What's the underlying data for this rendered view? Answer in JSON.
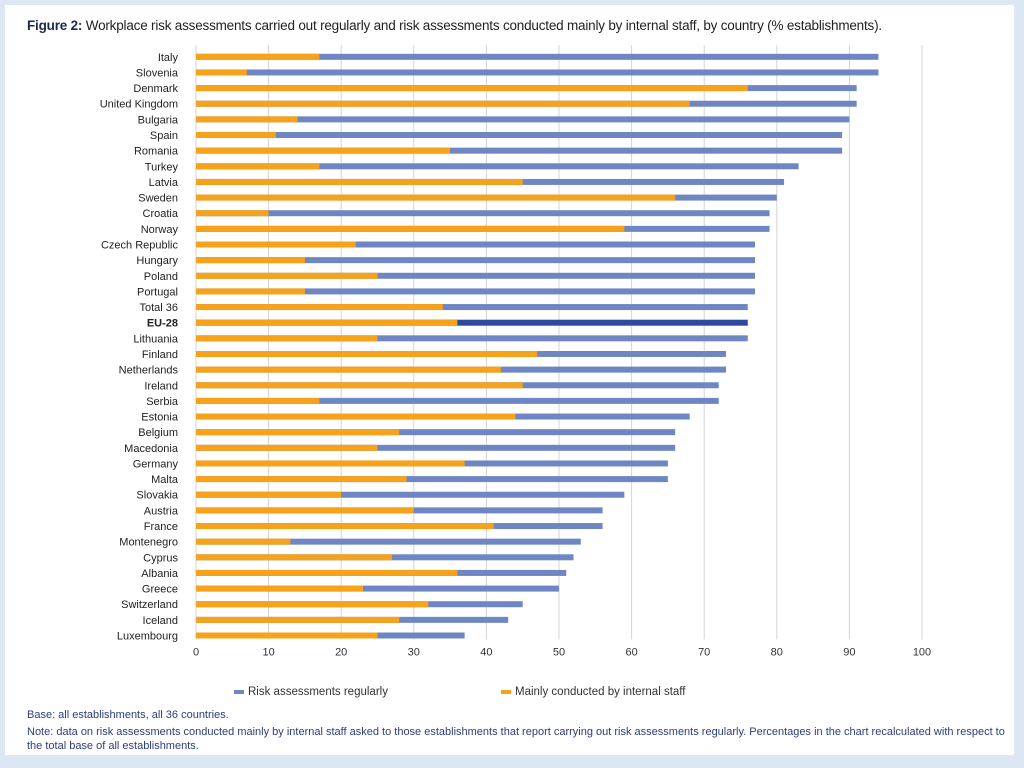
{
  "figure": {
    "label": "Figure 2:",
    "title": "Workplace risk assessments carried out regularly and risk assessments conducted mainly by internal staff, by country (% establishments)."
  },
  "footer": {
    "base": "Base: all establishments, all 36 countries.",
    "note": "Note: data on risk assessments conducted mainly by internal staff asked to those establishments that report carrying out risk assessments regularly. Percentages in the chart recalculated with respect to the total base of all establishments."
  },
  "colors": {
    "regular": "#6f86c4",
    "internal": "#f7a21b",
    "highlight": "#2d4aa0",
    "grid": "#d4d4d4"
  },
  "chart_data": {
    "type": "bar",
    "orientation": "horizontal",
    "title": "",
    "xlabel": "",
    "ylabel": "",
    "xlim": [
      0,
      100
    ],
    "x_ticks": [
      0,
      10,
      20,
      30,
      40,
      50,
      60,
      70,
      80,
      90,
      100
    ],
    "grid": true,
    "legend_position": "bottom",
    "highlight_category": "EU-28",
    "categories": [
      "Italy",
      "Slovenia",
      "Denmark",
      "United Kingdom",
      "Bulgaria",
      "Spain",
      "Romania",
      "Turkey",
      "Latvia",
      "Sweden",
      "Croatia",
      "Norway",
      "Czech Republic",
      "Hungary",
      "Poland",
      "Portugal",
      "Total 36",
      "EU-28",
      "Lithuania",
      "Finland",
      "Netherlands",
      "Ireland",
      "Serbia",
      "Estonia",
      "Belgium",
      "Macedonia",
      "Germany",
      "Malta",
      "Slovakia",
      "Austria",
      "France",
      "Montenegro",
      "Cyprus",
      "Albania",
      "Greece",
      "Switzerland",
      "Iceland",
      "Luxembourg"
    ],
    "series": [
      {
        "name": "Risk assessments regularly",
        "values": [
          94,
          94,
          91,
          91,
          90,
          89,
          89,
          83,
          81,
          80,
          79,
          79,
          77,
          77,
          77,
          77,
          76,
          76,
          76,
          73,
          73,
          72,
          72,
          68,
          66,
          66,
          65,
          65,
          59,
          56,
          56,
          53,
          52,
          51,
          50,
          45,
          43,
          37
        ]
      },
      {
        "name": "Mainly conducted by internal staff",
        "values": [
          17,
          7,
          76,
          68,
          14,
          11,
          35,
          17,
          45,
          66,
          10,
          59,
          22,
          15,
          25,
          15,
          34,
          36,
          25,
          47,
          42,
          45,
          17,
          44,
          28,
          25,
          37,
          29,
          20,
          30,
          41,
          13,
          27,
          36,
          23,
          32,
          28,
          25
        ]
      }
    ]
  }
}
